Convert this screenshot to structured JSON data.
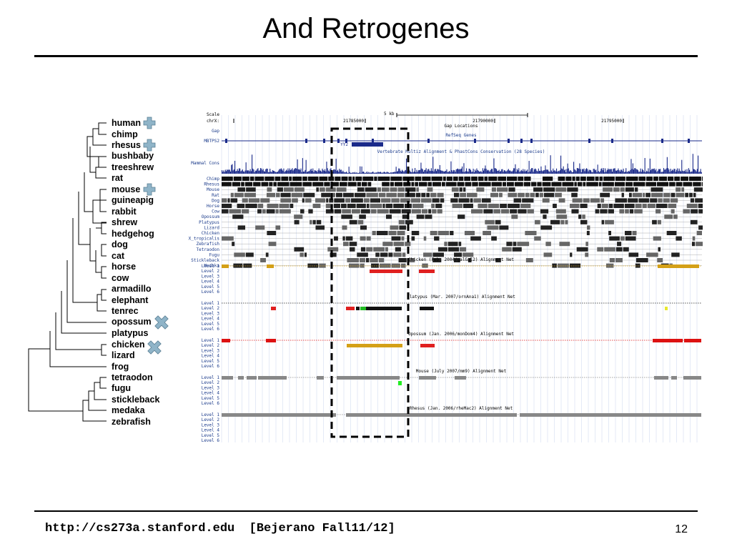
{
  "slide": {
    "title": "And Retrogenes",
    "footer": "http://cs273a.stanford.edu  [Bejerano Fall11/12]",
    "page_number": "12"
  },
  "tree": {
    "species": [
      "human",
      "chimp",
      "rhesus",
      "bushbaby",
      "treeshrew",
      "rat",
      "mouse",
      "guineapig",
      "rabbit",
      "shrew",
      "hedgehog",
      "dog",
      "cat",
      "horse",
      "cow",
      "armadillo",
      "elephant",
      "tenrec",
      "opossum",
      "platypus",
      "chicken",
      "lizard",
      "frog",
      "tetraodon",
      "fugu",
      "stickleback",
      "medaka",
      "zebrafish"
    ],
    "plus_marked": [
      "human",
      "rhesus",
      "mouse"
    ],
    "cross_marked": [
      "opossum",
      "chicken"
    ],
    "plus_color": "#8fb4c8",
    "cross_color": "#8fb4c8"
  },
  "browser": {
    "scale_label": "Scale",
    "chrom_label": "chrX:",
    "scale_text": "5 kb",
    "ticks": [
      "21785000",
      "21790000",
      "21795000"
    ],
    "gap_label": "Gap",
    "gap_locations": "Gap Locations",
    "refseq_title": "RefSeq Genes",
    "gene_label": "MBTPS2",
    "retrogene_label": "YY2",
    "conservation_title": "Vertebrate Multiz Alignment & PhastCons Conservation (28 Species)",
    "mammal_cons_label": "Mammal Cons",
    "align_species": [
      "Chimp",
      "Rhesus",
      "Mouse",
      "Rat",
      "Dog",
      "Horse",
      "Cow",
      "Opossum",
      "Platypus",
      "Lizard",
      "Chicken",
      "X_tropicalis",
      "Zebrafish",
      "Tetraodon",
      "Fugu",
      "Stickleback",
      "Medaka"
    ],
    "nets": [
      {
        "title": "Chicken (Feb. 2004/galGal2) Alignment Net",
        "color": "#d4a017"
      },
      {
        "title": "Platypus (Mar. 2007/ornAna1) Alignment Net",
        "color": "#222222"
      },
      {
        "title": "Opossum (Jan. 2006/monDom4) Alignment Net",
        "color": "#dd1111"
      },
      {
        "title": "Mouse (July 2007/mm9) Alignment Net",
        "color": "#888888"
      },
      {
        "title": "Rhesus (Jan. 2006/rheMac2) Alignment Net",
        "color": "#888888"
      }
    ],
    "levels": [
      "Level 1",
      "Level 2",
      "Level 3",
      "Level 4",
      "Level 5",
      "Level 6"
    ],
    "label_color": "#1a3a8a",
    "highlight_box_color": "#000000"
  }
}
